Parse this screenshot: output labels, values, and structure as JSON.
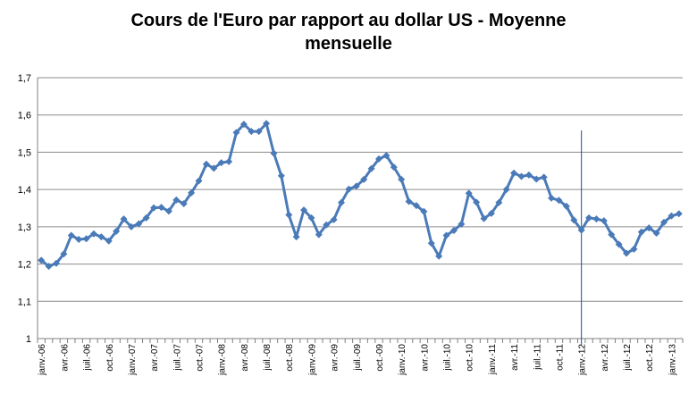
{
  "chart_data": {
    "type": "line",
    "title_lines": [
      "Cours de l'Euro par rapport au dollar US - Moyenne",
      "mensuelle"
    ],
    "xlabel": "",
    "ylabel": "",
    "ylim": [
      1,
      1.7
    ],
    "y_ticks": [
      "1",
      "1,1",
      "1,2",
      "1,3",
      "1,4",
      "1,5",
      "1,6",
      "1,7"
    ],
    "grid": "horizontal",
    "legend": "none",
    "x_tick_labels": [
      "janv.-06",
      "avr.-06",
      "juil.-06",
      "oct.-06",
      "janv.-07",
      "avr.-07",
      "juil.-07",
      "oct.-07",
      "janv.-08",
      "avr.-08",
      "juil.-08",
      "oct.-08",
      "janv.-09",
      "avr.-09",
      "juil.-09",
      "oct.-09",
      "janv.-10",
      "avr.-10",
      "juil.-10",
      "oct.-10",
      "janv.-11",
      "avr.-11",
      "juil.-11",
      "oct.-11",
      "janv.-12",
      "avr.-12",
      "juil.-12",
      "oct.-12",
      "janv.-13"
    ],
    "x": [
      "janv.-06",
      "févr.-06",
      "mars-06",
      "avr.-06",
      "mai-06",
      "juin-06",
      "juil.-06",
      "août-06",
      "sept.-06",
      "oct.-06",
      "nov.-06",
      "déc.-06",
      "janv.-07",
      "févr.-07",
      "mars-07",
      "avr.-07",
      "mai-07",
      "juin-07",
      "juil.-07",
      "août-07",
      "sept.-07",
      "oct.-07",
      "nov.-07",
      "déc.-07",
      "janv.-08",
      "févr.-08",
      "mars-08",
      "avr.-08",
      "mai-08",
      "juin-08",
      "juil.-08",
      "août-08",
      "sept.-08",
      "oct.-08",
      "nov.-08",
      "déc.-08",
      "janv.-09",
      "févr.-09",
      "mars-09",
      "avr.-09",
      "mai-09",
      "juin-09",
      "juil.-09",
      "août-09",
      "sept.-09",
      "oct.-09",
      "nov.-09",
      "déc.-09",
      "janv.-10",
      "févr.-10",
      "mars-10",
      "avr.-10",
      "mai-10",
      "juin-10",
      "juil.-10",
      "août-10",
      "sept.-10",
      "oct.-10",
      "nov.-10",
      "déc.-10",
      "janv.-11",
      "févr.-11",
      "mars-11",
      "avr.-11",
      "mai-11",
      "juin-11",
      "juil.-11",
      "août-11",
      "sept.-11",
      "oct.-11",
      "nov.-11",
      "déc.-11",
      "janv.-12",
      "févr.-12",
      "mars-12",
      "avr.-12",
      "mai-12",
      "juin-12",
      "juil.-12",
      "août-12",
      "sept.-12",
      "oct.-12",
      "nov.-12",
      "déc.-12",
      "janv.-13",
      "févr.-13"
    ],
    "series": [
      {
        "values": [
          1.21,
          1.194,
          1.202,
          1.227,
          1.277,
          1.266,
          1.268,
          1.281,
          1.273,
          1.262,
          1.288,
          1.321,
          1.3,
          1.308,
          1.324,
          1.351,
          1.352,
          1.342,
          1.372,
          1.362,
          1.391,
          1.423,
          1.468,
          1.457,
          1.472,
          1.475,
          1.553,
          1.575,
          1.556,
          1.556,
          1.577,
          1.497,
          1.437,
          1.332,
          1.273,
          1.345,
          1.324,
          1.279,
          1.305,
          1.319,
          1.365,
          1.401,
          1.409,
          1.427,
          1.456,
          1.482,
          1.491,
          1.46,
          1.427,
          1.368,
          1.357,
          1.341,
          1.256,
          1.221,
          1.277,
          1.29,
          1.307,
          1.39,
          1.366,
          1.322,
          1.336,
          1.365,
          1.4,
          1.444,
          1.435,
          1.439,
          1.428,
          1.433,
          1.377,
          1.371,
          1.355,
          1.318,
          1.291,
          1.324,
          1.321,
          1.316,
          1.279,
          1.253,
          1.229,
          1.24,
          1.286,
          1.297,
          1.283,
          1.312,
          1.329,
          1.335
        ],
        "color": "#4a7ab8"
      }
    ],
    "marker_line_at": "janv.-12",
    "marker_line_color": "#1f4e99"
  }
}
